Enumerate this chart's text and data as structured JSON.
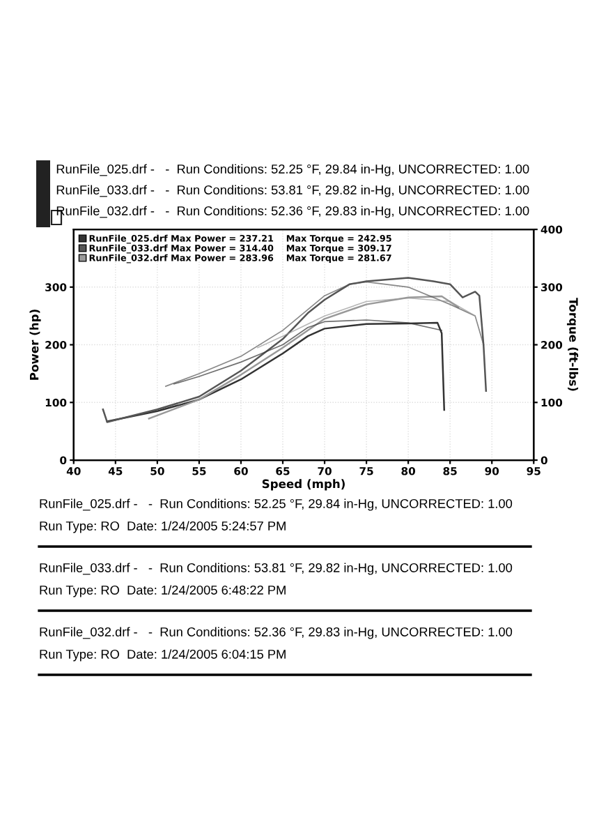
{
  "chart_data": {
    "type": "line",
    "xlabel": "Speed (mph)",
    "ylabel": "Power (hp)",
    "y2label": "Torque (ft-lbs)",
    "xlim": [
      40,
      95
    ],
    "xticks": [
      40,
      45,
      50,
      55,
      60,
      65,
      70,
      75,
      80,
      85,
      90,
      95
    ],
    "ylim": [
      0,
      400
    ],
    "yticks": [
      0,
      100,
      200,
      300
    ],
    "y2lim": [
      0,
      400
    ],
    "y2ticks": [
      0,
      100,
      200,
      300,
      400
    ],
    "grid": true,
    "legend": "top left",
    "marker": "none",
    "line_style": "solid",
    "annotations": [
      "RunFile_025.drf -   -  Run Conditions: 52.25 °F, 29.84 in-Hg, UNCORRECTED: 1.00",
      "RunFile_033.drf -   -  Run Conditions: 53.81 °F, 29.82 in-Hg, UNCORRECTED: 1.00",
      "RunFile_032.drf -   -  Run Conditions: 52.36 °F, 29.83 in-Hg, UNCORRECTED: 1.00",
      "RunFile_025.drf -   -  Run Conditions: 52.25 °F, 29.84 in-Hg, UNCORRECTED: 1.00",
      "Run Type: RO  Date: 1/24/2005 5:24:57 PM",
      "RunFile_033.drf -   -  Run Conditions: 53.81 °F, 29.82 in-Hg, UNCORRECTED: 1.00",
      "Run Type: RO  Date: 1/24/2005 6:48:22 PM",
      "RunFile_032.drf -   -  Run Conditions: 52.36 °F, 29.83 in-Hg, UNCORRECTED: 1.00",
      "Run Type: RO  Date: 1/24/2005 6:04:15 PM"
    ],
    "series": [
      {
        "name": "RunFile_025.drf Max Power = 237.21    Max Torque = 242.95",
        "color": "#333333",
        "x": [
          44,
          50,
          55,
          60,
          65,
          68,
          70,
          75,
          80,
          83.5,
          84,
          84.3
        ],
        "values": [
          67,
          85,
          105,
          140,
          185,
          215,
          228,
          236,
          237,
          238,
          220,
          87
        ]
      },
      {
        "name": "RunFile_033.drf Max Power = 314.40    Max Torque = 309.17",
        "color": "#555555",
        "x": [
          43.5,
          44,
          50,
          55,
          60,
          65,
          68,
          70,
          73,
          75,
          80,
          83,
          85,
          86.5,
          88,
          88.5,
          89,
          89.3
        ],
        "values": [
          88,
          66,
          88,
          110,
          155,
          210,
          255,
          278,
          305,
          310,
          316,
          310,
          305,
          282,
          292,
          285,
          200,
          120
        ]
      },
      {
        "name": "RunFile_032.drf Max Power = 283.96    Max Torque = 281.67",
        "color": "#999999",
        "x": [
          49,
          55,
          60,
          65,
          70,
          75,
          80,
          84,
          86
        ],
        "values": [
          72,
          105,
          148,
          195,
          245,
          270,
          282,
          284,
          265
        ]
      },
      {
        "color": "#333333",
        "axis": "y2",
        "x": [
          52,
          55,
          60,
          65,
          68,
          70,
          75,
          80,
          84
        ],
        "values": [
          132,
          145,
          170,
          200,
          230,
          240,
          243,
          238,
          225
        ]
      },
      {
        "color": "#555555",
        "axis": "y2",
        "x": [
          51,
          55,
          60,
          65,
          70,
          73,
          75,
          80,
          85,
          88,
          89
        ],
        "values": [
          128,
          150,
          180,
          225,
          285,
          305,
          309,
          300,
          270,
          250,
          200
        ]
      },
      {
        "color": "#999999",
        "axis": "y2",
        "x": [
          62,
          65,
          70,
          75,
          80,
          85,
          88
        ],
        "values": [
          195,
          215,
          250,
          275,
          281,
          275,
          250
        ]
      }
    ]
  }
}
